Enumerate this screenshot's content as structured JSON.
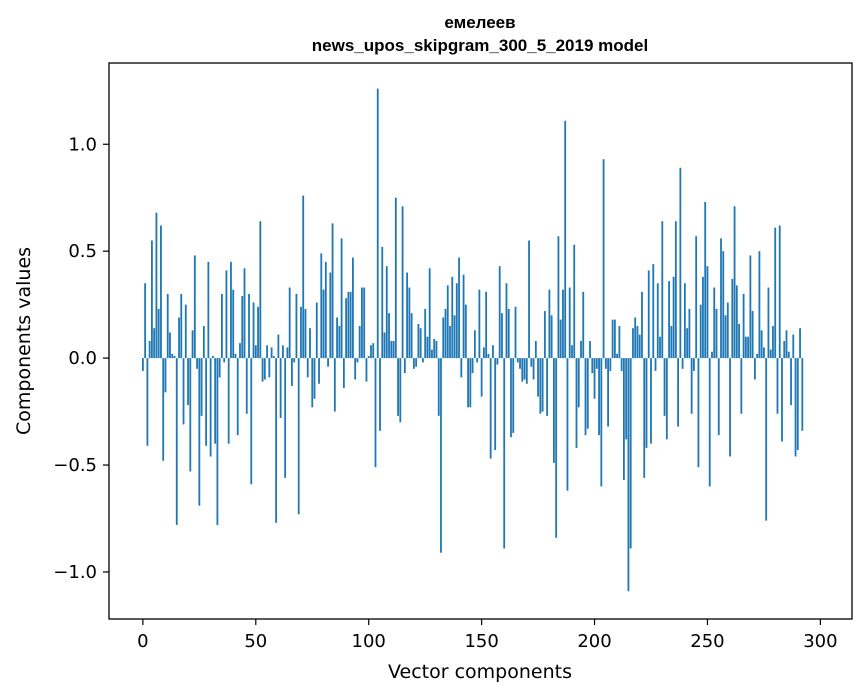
{
  "chart_data": {
    "type": "bar",
    "title_line1": "емелеев",
    "title_line2": "news_upos_skipgram_300_5_2019 model",
    "xlabel": "Vector components",
    "ylabel": "Components values",
    "xlim": [
      -15,
      314
    ],
    "ylim": [
      -1.22,
      1.38
    ],
    "xticks": [
      0,
      50,
      100,
      150,
      200,
      250,
      300
    ],
    "xtick_labels": [
      "0",
      "50",
      "100",
      "150",
      "200",
      "250",
      "300"
    ],
    "yticks": [
      -1.0,
      -0.5,
      0.0,
      0.5,
      1.0
    ],
    "ytick_labels": [
      "−1.0",
      "−0.5",
      "0.0",
      "0.5",
      "1.0"
    ],
    "bar_color": "#1f77b4",
    "grid": false,
    "values": [
      -0.06,
      0.35,
      -0.41,
      0.08,
      0.55,
      0.14,
      0.68,
      0.23,
      0.62,
      -0.48,
      -0.16,
      0.3,
      0.12,
      0.02,
      0.01,
      -0.78,
      0.19,
      0.3,
      -0.31,
      0.25,
      -0.22,
      -0.53,
      0.13,
      0.48,
      -0.05,
      -0.69,
      -0.27,
      0.15,
      -0.41,
      0.45,
      -0.46,
      0.01,
      -0.4,
      -0.78,
      -0.09,
      0.3,
      -0.02,
      0.41,
      -0.4,
      0.45,
      0.32,
      0.02,
      -0.36,
      0.07,
      0.29,
      0.42,
      -0.26,
      0.3,
      -0.59,
      0.26,
      0.06,
      0.24,
      0.64,
      -0.11,
      -0.1,
      0.06,
      -0.09,
      0.05,
      0.01,
      -0.77,
      0.11,
      -0.28,
      0.06,
      -0.56,
      0.05,
      0.33,
      -0.13,
      -0.02,
      0.3,
      -0.73,
      0.24,
      0.76,
      0.23,
      -0.09,
      0.14,
      -0.23,
      -0.19,
      0.26,
      -0.12,
      0.49,
      0.32,
      0.45,
      -0.04,
      0.4,
      0.63,
      -0.25,
      0.19,
      0.15,
      0.56,
      -0.14,
      0.28,
      0.31,
      0.31,
      0.47,
      -0.1,
      -0.02,
      0.15,
      0.33,
      0.33,
      -0.11,
      0.01,
      0.06,
      0.07,
      -0.51,
      1.26,
      -0.34,
      0.52,
      0.12,
      0.43,
      0.21,
      0.08,
      0.08,
      0.75,
      -0.27,
      -0.3,
      0.71,
      -0.07,
      0.4,
      0.33,
      0.21,
      -0.05,
      -0.04,
      0.16,
      0.14,
      -0.02,
      0.23,
      0.1,
      0.42,
      0.04,
      0.09,
      0.08,
      -0.27,
      -0.91,
      0.19,
      0.23,
      0.34,
      0.15,
      0.38,
      0.2,
      0.35,
      0.47,
      -0.09,
      0.39,
      0.25,
      -0.23,
      -0.23,
      -0.07,
      0.13,
      -0.02,
      0.32,
      -0.18,
      0.05,
      0.31,
      0.02,
      -0.47,
      0.06,
      -0.43,
      -0.03,
      0.43,
      0.21,
      -0.89,
      0.35,
      0.23,
      -0.37,
      -0.35,
      0.24,
      -0.02,
      -0.05,
      -0.11,
      -0.1,
      -0.12,
      0.55,
      -0.04,
      -0.1,
      0.08,
      -0.18,
      -0.26,
      -0.25,
      0.22,
      -0.27,
      0.32,
      0.2,
      -0.49,
      -0.84,
      0.57,
      0.18,
      0.32,
      1.11,
      -0.62,
      0.33,
      0.06,
      0.53,
      -0.42,
      -0.23,
      0.08,
      0.31,
      -0.36,
      -0.33,
      0.08,
      -0.07,
      -0.19,
      -0.05,
      -0.36,
      -0.6,
      0.93,
      -0.05,
      -0.32,
      -0.06,
      0.18,
      0.18,
      0.02,
      0.15,
      -0.06,
      -0.57,
      -0.38,
      -1.09,
      -0.89,
      0.14,
      0.19,
      0.15,
      0.11,
      0.31,
      -0.56,
      -0.42,
      0.41,
      -0.4,
      0.44,
      -0.06,
      0.35,
      0.1,
      0.64,
      -0.27,
      -0.38,
      0.36,
      0.15,
      0.38,
      0.64,
      -0.32,
      0.89,
      -0.05,
      0.35,
      0.14,
      0.23,
      -0.26,
      -0.06,
      0.57,
      -0.51,
      0.25,
      0.38,
      0.73,
      0.43,
      -0.6,
      0.03,
      0.33,
      0.23,
      -0.36,
      0.56,
      0.5,
      0.2,
      0.26,
      -0.46,
      0.37,
      0.71,
      0.34,
      0.16,
      -0.26,
      0.3,
      0.1,
      0.1,
      0.48,
      0.22,
      -0.1,
      0.02,
      0.5,
      0.13,
      0.05,
      -0.76,
      0.33,
      0.04,
      0.15,
      0.61,
      -0.26,
      0.62,
      -0.39,
      0.08,
      0.13,
      0.03,
      -0.22,
      0.11,
      -0.46,
      -0.43,
      0.14,
      -0.34
    ]
  }
}
